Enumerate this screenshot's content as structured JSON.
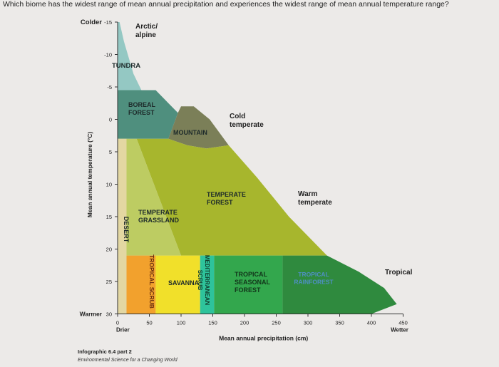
{
  "question": "Which biome has the widest range of mean annual precipitation and experiences the widest range of mean annual temperature range?",
  "chart_data": {
    "type": "area",
    "ylabel": "Mean annual temperature (°C)",
    "xlabel": "Mean annual precipitation (cm)",
    "x_ticks": [
      0,
      50,
      100,
      150,
      200,
      250,
      300,
      350,
      400,
      450
    ],
    "y_ticks": [
      -15,
      -10,
      -5,
      0,
      5,
      10,
      15,
      20,
      25,
      30
    ],
    "xlim": [
      0,
      450
    ],
    "ylim": [
      -15,
      30
    ],
    "y_inverted": true,
    "axis_end_labels": {
      "y_top": "Colder",
      "y_bottom": "Warmer",
      "x_left": "Drier",
      "x_right": "Wetter"
    },
    "climate_labels": [
      "Arctic/ alpine",
      "Cold temperate",
      "Warm temperate",
      "Tropical"
    ],
    "biomes": [
      {
        "name": "TUNDRA",
        "color": "#94c8c3",
        "outline": [
          [
            0,
            -15
          ],
          [
            3,
            -15
          ],
          [
            10,
            -12
          ],
          [
            25,
            -7
          ],
          [
            40,
            -4
          ],
          [
            60,
            -4.5
          ],
          [
            25,
            -4.5
          ],
          [
            0,
            -4.5
          ]
        ]
      },
      {
        "name": "BOREAL FOREST",
        "color": "#4f8f7e",
        "outline": [
          [
            0,
            -4.5
          ],
          [
            60,
            -4.5
          ],
          [
            80,
            -2.5
          ],
          [
            95,
            -1
          ],
          [
            80,
            3
          ],
          [
            30,
            3
          ],
          [
            0,
            3
          ]
        ]
      },
      {
        "name": "MOUNTAIN",
        "color": "#7b7f58",
        "outline": [
          [
            80,
            3
          ],
          [
            95,
            -1
          ],
          [
            100,
            -2
          ],
          [
            120,
            -2
          ],
          [
            145,
            0
          ],
          [
            175,
            4
          ],
          [
            140,
            4.5
          ],
          [
            110,
            4
          ],
          [
            80,
            3
          ]
        ]
      },
      {
        "name": "TEMPERATE FOREST",
        "color": "#a7b62d",
        "outline": [
          [
            30,
            3
          ],
          [
            80,
            3
          ],
          [
            110,
            4
          ],
          [
            140,
            4.5
          ],
          [
            175,
            4
          ],
          [
            220,
            9
          ],
          [
            270,
            15
          ],
          [
            330,
            21
          ],
          [
            220,
            21
          ],
          [
            150,
            21
          ],
          [
            100,
            21
          ]
        ]
      },
      {
        "name": "TEMPERATE GRASSLAND",
        "color": "#bdcc62",
        "outline": [
          [
            0,
            3
          ],
          [
            30,
            3
          ],
          [
            100,
            21
          ],
          [
            70,
            21
          ],
          [
            0,
            21
          ]
        ]
      },
      {
        "name": "DESERT",
        "color": "#e3d7a2",
        "outline": [
          [
            0,
            3
          ],
          [
            14,
            3
          ],
          [
            14,
            30
          ],
          [
            0,
            30
          ]
        ]
      },
      {
        "name": "TROPICAL SCRUB",
        "color": "#f2a12d",
        "outline": [
          [
            14,
            21
          ],
          [
            60,
            21
          ],
          [
            60,
            30
          ],
          [
            14,
            30
          ]
        ]
      },
      {
        "name": "SAVANNA",
        "color": "#f1e02a",
        "outline": [
          [
            60,
            21
          ],
          [
            130,
            21
          ],
          [
            130,
            30
          ],
          [
            60,
            30
          ]
        ]
      },
      {
        "name": "MEDITERRANEAN SCRUB",
        "color": "#2ec39b",
        "outline": [
          [
            130,
            21
          ],
          [
            152,
            21
          ],
          [
            152,
            30
          ],
          [
            130,
            30
          ]
        ]
      },
      {
        "name": "TROPICAL SEASONAL FOREST",
        "color": "#33a74d",
        "outline": [
          [
            152,
            21
          ],
          [
            260,
            21
          ],
          [
            260,
            30
          ],
          [
            152,
            30
          ]
        ]
      },
      {
        "name": "TROPICAL RAINFOREST",
        "color": "#2f8a3e",
        "outline": [
          [
            260,
            21
          ],
          [
            330,
            21
          ],
          [
            380,
            23.5
          ],
          [
            420,
            26
          ],
          [
            440,
            28.5
          ],
          [
            400,
            30
          ],
          [
            260,
            30
          ]
        ]
      }
    ],
    "region_labels": [
      {
        "text": [
          "TUNDRA"
        ]
      },
      {
        "text": [
          "BOREAL",
          "FOREST"
        ]
      },
      {
        "text": [
          "MOUNTAIN"
        ]
      },
      {
        "text": [
          "TEMPERATE",
          "FOREST"
        ]
      },
      {
        "text": [
          "TEMPERATE",
          "GRASSLAND"
        ]
      },
      {
        "text": [
          "DESERT"
        ]
      },
      {
        "text": [
          "TROPICAL SCRUB"
        ]
      },
      {
        "text": [
          "SAVANNA"
        ]
      },
      {
        "text": [
          "MEDITERRANEAN",
          "SCRUB"
        ]
      },
      {
        "text": [
          "TROPICAL",
          "SEASONAL",
          "FOREST"
        ]
      },
      {
        "text": [
          "TROPICAL",
          "RAINFOREST"
        ]
      }
    ]
  },
  "credit": {
    "line1": "Infographic 6.4 part 2",
    "line2": "Environmental Science for a Changing World"
  }
}
